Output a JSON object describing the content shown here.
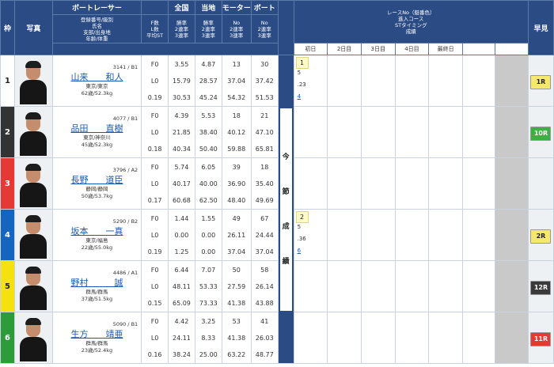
{
  "header": {
    "waku": "枠",
    "photo": "写真",
    "boat_racer": "ボートレーサー",
    "racer_sub": [
      "登録番号/級別",
      "氏名",
      "支部/出身地",
      "年齢/体重"
    ],
    "national": "全国",
    "local": "当地",
    "motor": "モーター",
    "boat": "ボート",
    "flst_sub": [
      "F数",
      "L数",
      "平均ST"
    ],
    "national_sub": [
      "勝率",
      "2連率",
      "3連率"
    ],
    "local_sub": [
      "勝率",
      "2連率",
      "3連率"
    ],
    "motor_sub": [
      "No",
      "2連率",
      "3連率"
    ],
    "boat_sub": [
      "No",
      "2連率",
      "3連率"
    ],
    "konsetsu_lines": [
      "レースNo（艇番色）",
      "進入コース",
      "STタイミング",
      "成績"
    ],
    "days": [
      "初日",
      "2日目",
      "3日目",
      "4日目",
      "最終日"
    ],
    "early": "早見",
    "konsetsu_vertical": [
      "今",
      "節",
      "成",
      "績"
    ]
  },
  "racers": [
    {
      "waku": "1",
      "reg": "3141 / B1",
      "name": "山来　　和人",
      "branch": "東京/東京",
      "age_weight": "62歳/52.3kg",
      "f": "F0",
      "l": "L0",
      "st": "0.19",
      "national": [
        "3.55",
        "15.79",
        "30.53"
      ],
      "local": [
        "4.87",
        "28.57",
        "45.24"
      ],
      "motor": [
        "13",
        "37.04",
        "54.32"
      ],
      "boat": [
        "30",
        "37.42",
        "51.53"
      ],
      "day1": {
        "race": "1",
        "course": "5",
        "st": ".23",
        "result": "4"
      },
      "early": "1R",
      "early_color": "#f5e96a"
    },
    {
      "waku": "2",
      "reg": "4077 / B1",
      "name": "品田　　直樹",
      "branch": "東京/神奈川",
      "age_weight": "45歳/52.3kg",
      "f": "F0",
      "l": "L0",
      "st": "0.18",
      "national": [
        "4.39",
        "21.85",
        "40.34"
      ],
      "local": [
        "5.53",
        "38.40",
        "50.40"
      ],
      "motor": [
        "18",
        "40.12",
        "59.88"
      ],
      "boat": [
        "21",
        "47.10",
        "65.81"
      ],
      "day1": null,
      "early": "10R",
      "early_color": "#3cb043"
    },
    {
      "waku": "3",
      "reg": "3796 / A2",
      "name": "長野　　道臣",
      "branch": "静岡/静岡",
      "age_weight": "50歳/53.7kg",
      "f": "F0",
      "l": "L0",
      "st": "0.17",
      "national": [
        "5.74",
        "40.17",
        "60.68"
      ],
      "local": [
        "6.05",
        "40.00",
        "62.50"
      ],
      "motor": [
        "39",
        "36.90",
        "48.40"
      ],
      "boat": [
        "18",
        "35.40",
        "49.69"
      ],
      "day1": null,
      "early": "",
      "early_color": ""
    },
    {
      "waku": "4",
      "reg": "5290 / B2",
      "name": "坂本　　一真",
      "branch": "東京/福島",
      "age_weight": "22歳/55.0kg",
      "f": "F0",
      "l": "L0",
      "st": "0.19",
      "national": [
        "1.44",
        "0.00",
        "1.25"
      ],
      "local": [
        "1.55",
        "0.00",
        "0.00"
      ],
      "motor": [
        "49",
        "26.11",
        "37.04"
      ],
      "boat": [
        "67",
        "24.44",
        "37.04"
      ],
      "day1": {
        "race": "2",
        "course": "5",
        "st": ".36",
        "result": "6"
      },
      "early": "2R",
      "early_color": "#f5e96a"
    },
    {
      "waku": "5",
      "reg": "4486 / A1",
      "name": "野村　　　誠",
      "branch": "群馬/群馬",
      "age_weight": "37歳/51.5kg",
      "f": "F0",
      "l": "L0",
      "st": "0.15",
      "national": [
        "6.44",
        "48.11",
        "65.09"
      ],
      "local": [
        "7.07",
        "53.33",
        "73.33"
      ],
      "motor": [
        "50",
        "27.59",
        "41.38"
      ],
      "boat": [
        "58",
        "26.14",
        "43.88"
      ],
      "day1": null,
      "early": "12R",
      "early_color": "#3a3a3a"
    },
    {
      "waku": "6",
      "reg": "5090 / B1",
      "name": "生方　　靖亜",
      "branch": "群馬/群馬",
      "age_weight": "23歳/52.4kg",
      "f": "F0",
      "l": "L0",
      "st": "0.16",
      "national": [
        "4.42",
        "24.11",
        "38.24"
      ],
      "local": [
        "3.25",
        "8.33",
        "25.00"
      ],
      "motor": [
        "53",
        "41.38",
        "63.22"
      ],
      "boat": [
        "41",
        "26.03",
        "48.77"
      ],
      "day1": null,
      "early": "11R",
      "early_color": "#e53935"
    }
  ]
}
